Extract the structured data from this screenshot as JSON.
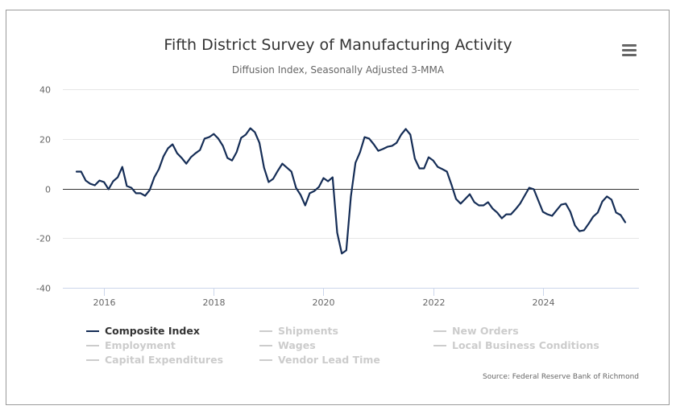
{
  "header": {
    "title": "Fifth District Survey of Manufacturing Activity",
    "subtitle": "Diffusion Index, Seasonally Adjusted 3-MMA",
    "menu_icon": "hamburger-menu-icon"
  },
  "credits": "Source: Federal Reserve Bank of Richmond",
  "colors": {
    "active_series": "#152d56",
    "inactive_series": "#cccccc",
    "grid": "#e6e6e6",
    "zero_line": "#333333"
  },
  "legend": [
    {
      "label": "Composite Index",
      "active": true
    },
    {
      "label": "Shipments",
      "active": false
    },
    {
      "label": "New Orders",
      "active": false
    },
    {
      "label": "Employment",
      "active": false
    },
    {
      "label": "Wages",
      "active": false
    },
    {
      "label": "Local Business Conditions",
      "active": false
    },
    {
      "label": "Capital Expenditures",
      "active": false
    },
    {
      "label": "Vendor Lead Time",
      "active": false
    }
  ],
  "chart_data": {
    "type": "line",
    "title": "Fifth District Survey of Manufacturing Activity",
    "subtitle": "Diffusion Index, Seasonally Adjusted 3-MMA",
    "xlabel": "",
    "ylabel": "",
    "x_start": "2015-07",
    "x_frequency": "monthly",
    "xlim": [
      2015.25,
      2025.75
    ],
    "ylim": [
      -40,
      40
    ],
    "yticks": [
      40,
      20,
      0,
      -20,
      -40
    ],
    "ytick_labels": [
      "40",
      "20",
      "0",
      "-20",
      "-40"
    ],
    "xticks": [
      2016,
      2018,
      2020,
      2022,
      2024
    ],
    "xtick_labels": [
      "2016",
      "2018",
      "2020",
      "2022",
      "2024"
    ],
    "grid": true,
    "legend_position": "bottom",
    "series": [
      {
        "name": "Composite Index",
        "visible": true,
        "values": [
          6.8,
          6.8,
          3.2,
          1.9,
          1.3,
          3.2,
          2.6,
          -0.3,
          2.9,
          4.5,
          8.7,
          1.0,
          0.3,
          -1.9,
          -1.9,
          -2.9,
          -0.6,
          4.5,
          7.8,
          12.9,
          16.2,
          17.8,
          14.2,
          12.3,
          10.0,
          12.6,
          14.2,
          15.5,
          20.1,
          20.7,
          22.0,
          20.1,
          17.2,
          12.3,
          11.3,
          14.6,
          20.4,
          21.7,
          24.3,
          22.7,
          18.4,
          8.4,
          2.6,
          3.9,
          7.1,
          10.0,
          8.4,
          6.8,
          0.3,
          -2.6,
          -6.8,
          -1.9,
          -1.0,
          0.6,
          4.2,
          2.9,
          4.5,
          -17.8,
          -26.2,
          -24.9,
          -3.2,
          10.4,
          14.6,
          20.7,
          20.1,
          17.8,
          15.2,
          15.9,
          16.8,
          17.2,
          18.4,
          21.7,
          24.0,
          21.7,
          12.0,
          8.1,
          8.1,
          12.6,
          11.3,
          8.7,
          7.8,
          6.8,
          1.6,
          -4.2,
          -6.1,
          -4.2,
          -2.3,
          -5.5,
          -6.8,
          -6.8,
          -5.5,
          -8.1,
          -9.7,
          -12.0,
          -10.4,
          -10.4,
          -8.4,
          -6.1,
          -2.9,
          0.3,
          -0.3,
          -4.9,
          -9.4,
          -10.4,
          -11.0,
          -8.7,
          -6.5,
          -6.1,
          -9.4,
          -14.9,
          -17.2,
          -16.8,
          -14.2,
          -11.3,
          -9.7,
          -5.2,
          -3.2,
          -4.5,
          -9.7,
          -10.7,
          -13.6
        ]
      },
      {
        "name": "Shipments",
        "visible": false
      },
      {
        "name": "New Orders",
        "visible": false
      },
      {
        "name": "Employment",
        "visible": false
      },
      {
        "name": "Wages",
        "visible": false
      },
      {
        "name": "Local Business Conditions",
        "visible": false
      },
      {
        "name": "Capital Expenditures",
        "visible": false
      },
      {
        "name": "Vendor Lead Time",
        "visible": false
      }
    ]
  }
}
